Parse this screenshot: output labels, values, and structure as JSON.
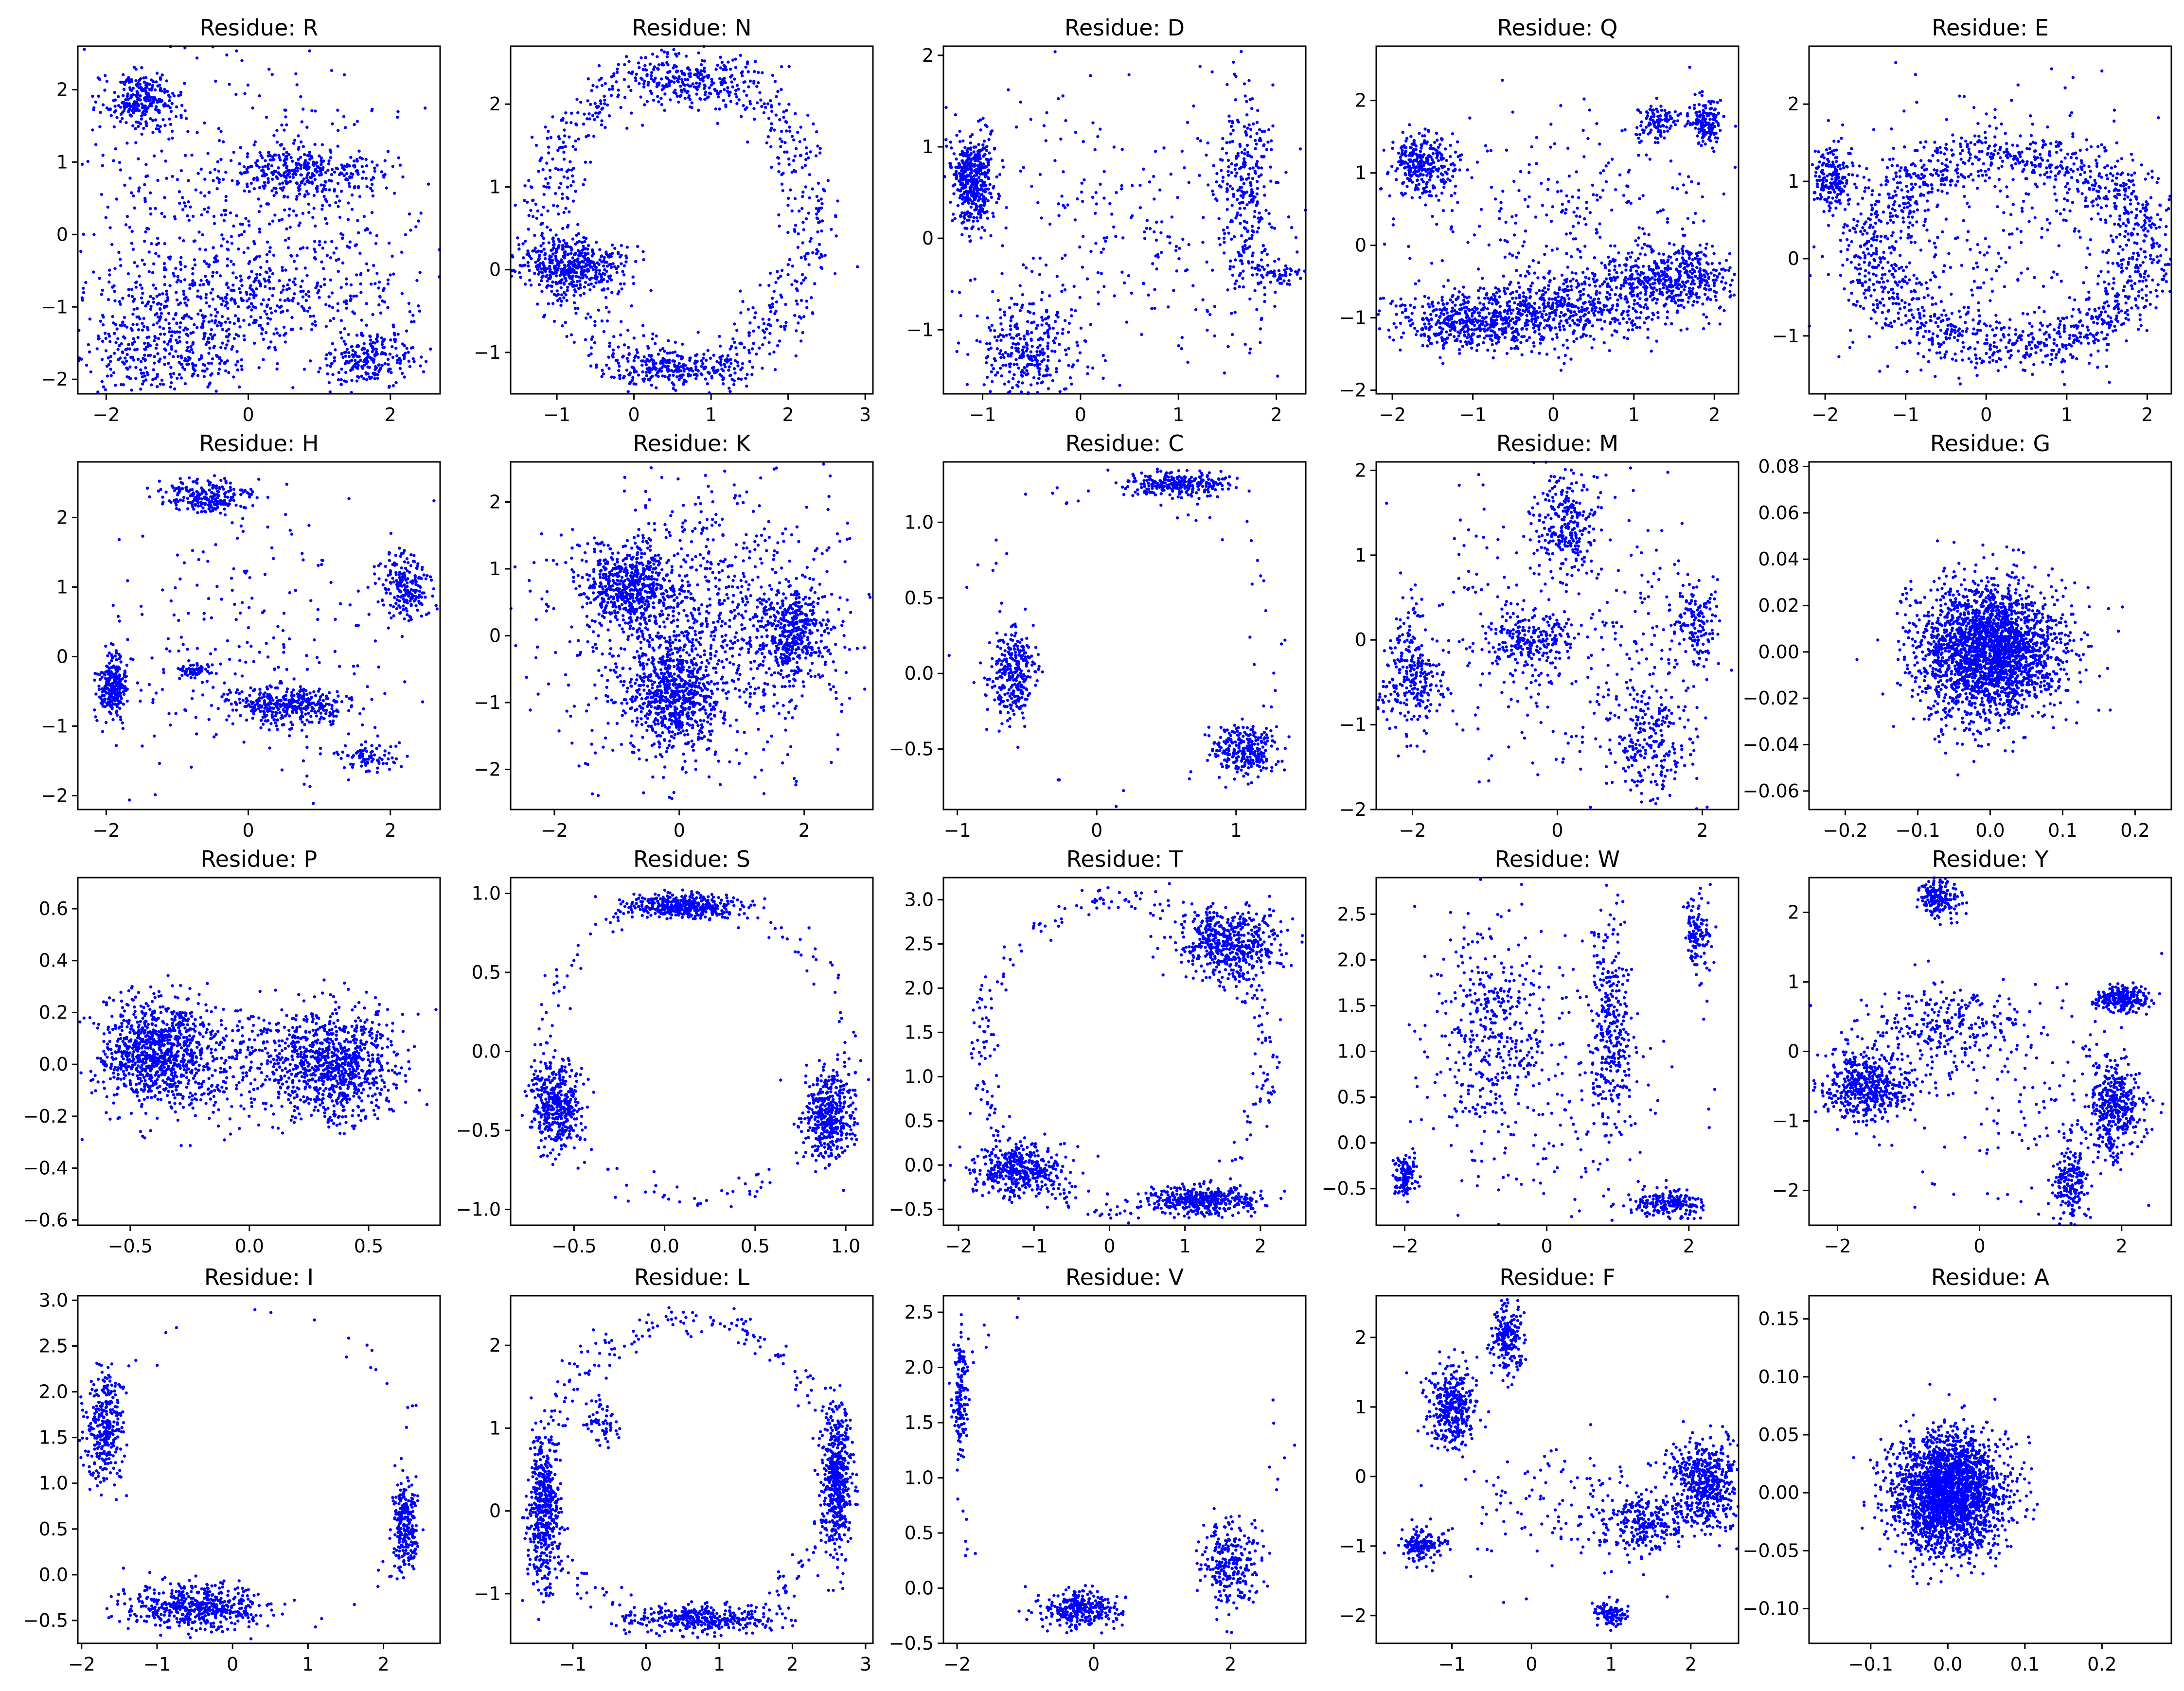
{
  "figure": {
    "point_color": "#0000ff",
    "background": "#ffffff"
  },
  "chart_data": [
    {
      "type": "scatter",
      "title": "Residue: R",
      "xlim": [
        -2.4,
        2.7
      ],
      "ylim": [
        -2.2,
        2.6
      ],
      "xticks": [
        -2,
        0,
        2
      ],
      "yticks": [
        -2,
        -1,
        0,
        1,
        2
      ],
      "clusters": [
        {
          "cx": -1.5,
          "cy": 1.85,
          "sx": 0.25,
          "sy": 0.18,
          "n": 260
        },
        {
          "cx": 0.8,
          "cy": 0.85,
          "sx": 0.55,
          "sy": 0.18,
          "n": 300
        },
        {
          "cx": 1.7,
          "cy": -1.7,
          "sx": 0.3,
          "sy": 0.2,
          "n": 220
        },
        {
          "cx": -1.2,
          "cy": -1.6,
          "sx": 0.6,
          "sy": 0.3,
          "n": 320
        },
        {
          "cx": 0.0,
          "cy": 0.0,
          "sx": 1.3,
          "sy": 1.1,
          "n": 700
        },
        {
          "cx": 0.0,
          "cy": -0.9,
          "sx": 1.1,
          "sy": 0.25,
          "n": 300
        }
      ]
    },
    {
      "type": "scatter",
      "title": "Residue: N",
      "xlim": [
        -1.6,
        3.1
      ],
      "ylim": [
        -1.5,
        2.7
      ],
      "xticks": [
        -1,
        0,
        1,
        2,
        3
      ],
      "yticks": [
        -1,
        0,
        1,
        2
      ],
      "clusters": [
        {
          "cx": -0.8,
          "cy": 0.05,
          "sx": 0.35,
          "sy": 0.15,
          "n": 420
        },
        {
          "cx": 0.7,
          "cy": 2.3,
          "sx": 0.4,
          "sy": 0.15,
          "n": 180
        },
        {
          "cx": 0.6,
          "cy": -1.2,
          "sx": 0.5,
          "sy": 0.1,
          "n": 200
        }
      ],
      "rings": [
        {
          "cx": 0.6,
          "cy": 0.6,
          "rx": 1.7,
          "ry": 1.8,
          "w": 0.12,
          "n": 800
        }
      ]
    },
    {
      "type": "scatter",
      "title": "Residue: D",
      "xlim": [
        -1.4,
        2.3
      ],
      "ylim": [
        -1.7,
        2.1
      ],
      "xticks": [
        -1,
        0,
        1,
        2
      ],
      "yticks": [
        -1,
        0,
        1,
        2
      ],
      "clusters": [
        {
          "cx": -1.1,
          "cy": 0.65,
          "sx": 0.1,
          "sy": 0.25,
          "n": 450
        },
        {
          "cx": -0.5,
          "cy": -1.2,
          "sx": 0.3,
          "sy": 0.3,
          "n": 300
        },
        {
          "cx": 1.7,
          "cy": 0.4,
          "sx": 0.15,
          "sy": 0.6,
          "n": 300
        },
        {
          "cx": 2.0,
          "cy": -0.4,
          "sx": 0.15,
          "sy": 0.07,
          "n": 60
        },
        {
          "cx": 0.4,
          "cy": 0.1,
          "sx": 0.9,
          "sy": 0.9,
          "n": 250
        }
      ]
    },
    {
      "type": "scatter",
      "title": "Residue: Q",
      "xlim": [
        -2.2,
        2.3
      ],
      "ylim": [
        -2.05,
        2.75
      ],
      "xticks": [
        -2,
        -1,
        0,
        1,
        2
      ],
      "yticks": [
        -2,
        -1,
        0,
        1,
        2
      ],
      "clusters": [
        {
          "cx": -1.6,
          "cy": 1.1,
          "sx": 0.2,
          "sy": 0.2,
          "n": 300
        },
        {
          "cx": 1.3,
          "cy": 1.7,
          "sx": 0.15,
          "sy": 0.12,
          "n": 100
        },
        {
          "cx": 1.9,
          "cy": 1.7,
          "sx": 0.1,
          "sy": 0.15,
          "n": 150
        },
        {
          "cx": -1.0,
          "cy": -1.05,
          "sx": 0.5,
          "sy": 0.2,
          "n": 500
        },
        {
          "cx": 0.3,
          "cy": -0.85,
          "sx": 0.6,
          "sy": 0.25,
          "n": 500
        },
        {
          "cx": 1.5,
          "cy": -0.45,
          "sx": 0.4,
          "sy": 0.2,
          "n": 400
        },
        {
          "cx": 0.3,
          "cy": 0.3,
          "sx": 1.0,
          "sy": 0.8,
          "n": 300
        }
      ]
    },
    {
      "type": "scatter",
      "title": "Residue: E",
      "xlim": [
        -2.2,
        2.3
      ],
      "ylim": [
        -1.75,
        2.75
      ],
      "xticks": [
        -2,
        -1,
        0,
        1,
        2
      ],
      "yticks": [
        -1,
        0,
        1,
        2
      ],
      "clusters": [
        {
          "cx": -1.9,
          "cy": 1.05,
          "sx": 0.12,
          "sy": 0.2,
          "n": 180
        },
        {
          "cx": 0.0,
          "cy": 0.4,
          "sx": 1.0,
          "sy": 1.0,
          "n": 300
        }
      ],
      "rings": [
        {
          "cx": 0.3,
          "cy": 0.1,
          "rx": 1.7,
          "ry": 1.25,
          "w": 0.14,
          "n": 1400
        }
      ]
    },
    {
      "type": "scatter",
      "title": "Residue: H",
      "xlim": [
        -2.4,
        2.7
      ],
      "ylim": [
        -2.2,
        2.8
      ],
      "xticks": [
        -2,
        0,
        2
      ],
      "yticks": [
        -2,
        -1,
        0,
        1,
        2
      ],
      "clusters": [
        {
          "cx": -0.6,
          "cy": 2.3,
          "sx": 0.3,
          "sy": 0.12,
          "n": 220
        },
        {
          "cx": 2.2,
          "cy": 1.0,
          "sx": 0.2,
          "sy": 0.25,
          "n": 200
        },
        {
          "cx": -1.9,
          "cy": -0.45,
          "sx": 0.1,
          "sy": 0.25,
          "n": 250
        },
        {
          "cx": 0.6,
          "cy": -0.7,
          "sx": 0.4,
          "sy": 0.13,
          "n": 350
        },
        {
          "cx": 1.7,
          "cy": -1.45,
          "sx": 0.2,
          "sy": 0.1,
          "n": 80
        },
        {
          "cx": -0.8,
          "cy": -0.2,
          "sx": 0.12,
          "sy": 0.05,
          "n": 60
        },
        {
          "cx": 0.0,
          "cy": 0.0,
          "sx": 1.3,
          "sy": 1.0,
          "n": 250
        }
      ]
    },
    {
      "type": "scatter",
      "title": "Residue: K",
      "xlim": [
        -2.7,
        3.1
      ],
      "ylim": [
        -2.6,
        2.6
      ],
      "xticks": [
        -2,
        0,
        2
      ],
      "yticks": [
        -2,
        -1,
        0,
        1,
        2
      ],
      "clusters": [
        {
          "cx": -0.8,
          "cy": 0.75,
          "sx": 0.35,
          "sy": 0.3,
          "n": 500
        },
        {
          "cx": -0.1,
          "cy": -0.85,
          "sx": 0.35,
          "sy": 0.4,
          "n": 600
        },
        {
          "cx": 1.8,
          "cy": 0.0,
          "sx": 0.3,
          "sy": 0.35,
          "n": 400
        },
        {
          "cx": 0.3,
          "cy": 0.1,
          "sx": 1.2,
          "sy": 1.0,
          "n": 1000
        }
      ]
    },
    {
      "type": "scatter",
      "title": "Residue: C",
      "xlim": [
        -1.1,
        1.5
      ],
      "ylim": [
        -0.9,
        1.4
      ],
      "xticks": [
        -1,
        0,
        1
      ],
      "yticks": [
        -0.5,
        0.0,
        0.5,
        1.0
      ],
      "clusters": [
        {
          "cx": 0.6,
          "cy": 1.25,
          "sx": 0.18,
          "sy": 0.04,
          "n": 250
        },
        {
          "cx": -0.6,
          "cy": 0.0,
          "sx": 0.08,
          "sy": 0.15,
          "n": 280
        },
        {
          "cx": 1.05,
          "cy": -0.5,
          "sx": 0.12,
          "sy": 0.08,
          "n": 260
        }
      ],
      "rings": [
        {
          "cx": 0.2,
          "cy": 0.2,
          "rx": 1.1,
          "ry": 1.05,
          "w": 0.08,
          "n": 60
        }
      ]
    },
    {
      "type": "scatter",
      "title": "Residue: M",
      "xlim": [
        -2.5,
        2.5
      ],
      "ylim": [
        -2.0,
        2.1
      ],
      "xticks": [
        -2,
        0,
        2
      ],
      "yticks": [
        -2,
        -1,
        0,
        1,
        2
      ],
      "clusters": [
        {
          "cx": 0.1,
          "cy": 1.4,
          "sx": 0.2,
          "sy": 0.3,
          "n": 250
        },
        {
          "cx": -2.0,
          "cy": -0.4,
          "sx": 0.2,
          "sy": 0.35,
          "n": 250
        },
        {
          "cx": -0.4,
          "cy": 0.0,
          "sx": 0.3,
          "sy": 0.15,
          "n": 200
        },
        {
          "cx": 1.3,
          "cy": -1.2,
          "sx": 0.3,
          "sy": 0.4,
          "n": 250
        },
        {
          "cx": 1.9,
          "cy": 0.2,
          "sx": 0.2,
          "sy": 0.3,
          "n": 150
        },
        {
          "cx": 0.0,
          "cy": 0.0,
          "sx": 1.2,
          "sy": 0.9,
          "n": 350
        }
      ]
    },
    {
      "type": "scatter",
      "title": "Residue: G",
      "xlim": [
        -0.25,
        0.25
      ],
      "ylim": [
        -0.068,
        0.082
      ],
      "xticks": [
        -0.2,
        -0.1,
        0.0,
        0.1,
        0.2
      ],
      "yticks": [
        -0.06,
        -0.04,
        -0.02,
        0.0,
        0.02,
        0.04,
        0.06,
        0.08
      ],
      "clusters": [
        {
          "cx": 0.0,
          "cy": 0.0,
          "sx": 0.05,
          "sy": 0.014,
          "n": 2400
        }
      ]
    },
    {
      "type": "scatter",
      "title": "Residue: P",
      "xlim": [
        -0.72,
        0.8
      ],
      "ylim": [
        -0.62,
        0.72
      ],
      "xticks": [
        -0.5,
        0.0,
        0.5
      ],
      "yticks": [
        -0.6,
        -0.4,
        -0.2,
        0.0,
        0.2,
        0.4,
        0.6
      ],
      "clusters": [
        {
          "cx": -0.4,
          "cy": 0.05,
          "sx": 0.12,
          "sy": 0.1,
          "n": 900
        },
        {
          "cx": 0.35,
          "cy": 0.0,
          "sx": 0.13,
          "sy": 0.1,
          "n": 800
        },
        {
          "cx": 0.0,
          "cy": 0.0,
          "sx": 0.25,
          "sy": 0.12,
          "n": 350
        }
      ]
    },
    {
      "type": "scatter",
      "title": "Residue: S",
      "xlim": [
        -0.85,
        1.15
      ],
      "ylim": [
        -1.1,
        1.1
      ],
      "xticks": [
        -0.5,
        0.0,
        0.5,
        1.0
      ],
      "yticks": [
        -1.0,
        -0.5,
        0.0,
        0.5,
        1.0
      ],
      "clusters": [
        {
          "cx": 0.1,
          "cy": 0.92,
          "sx": 0.15,
          "sy": 0.04,
          "n": 400
        },
        {
          "cx": -0.6,
          "cy": -0.35,
          "sx": 0.07,
          "sy": 0.14,
          "n": 400
        },
        {
          "cx": 0.9,
          "cy": -0.4,
          "sx": 0.07,
          "sy": 0.14,
          "n": 400
        }
      ],
      "rings": [
        {
          "cx": 0.15,
          "cy": 0.0,
          "rx": 0.85,
          "ry": 0.93,
          "w": 0.05,
          "n": 150
        }
      ]
    },
    {
      "type": "scatter",
      "title": "Residue: T",
      "xlim": [
        -2.2,
        2.6
      ],
      "ylim": [
        -0.68,
        3.25
      ],
      "xticks": [
        -2,
        -1,
        0,
        1,
        2
      ],
      "yticks": [
        -0.5,
        0.0,
        0.5,
        1.0,
        1.5,
        2.0,
        2.5,
        3.0
      ],
      "clusters": [
        {
          "cx": -1.2,
          "cy": -0.05,
          "sx": 0.3,
          "sy": 0.15,
          "n": 400
        },
        {
          "cx": 1.2,
          "cy": -0.4,
          "sx": 0.35,
          "sy": 0.08,
          "n": 400
        },
        {
          "cx": 1.6,
          "cy": 2.5,
          "sx": 0.35,
          "sy": 0.2,
          "n": 500
        }
      ],
      "rings": [
        {
          "cx": 0.2,
          "cy": 1.25,
          "rx": 1.9,
          "ry": 1.78,
          "w": 0.05,
          "n": 300
        }
      ]
    },
    {
      "type": "scatter",
      "title": "Residue: W",
      "xlim": [
        -2.4,
        2.7
      ],
      "ylim": [
        -0.9,
        2.9
      ],
      "xticks": [
        -2,
        0,
        2
      ],
      "yticks": [
        -0.5,
        0.0,
        0.5,
        1.0,
        1.5,
        2.0,
        2.5
      ],
      "clusters": [
        {
          "cx": -2.0,
          "cy": -0.35,
          "sx": 0.08,
          "sy": 0.12,
          "n": 120
        },
        {
          "cx": 1.7,
          "cy": -0.65,
          "sx": 0.25,
          "sy": 0.08,
          "n": 200
        },
        {
          "cx": 2.1,
          "cy": 2.3,
          "sx": 0.1,
          "sy": 0.25,
          "n": 120
        },
        {
          "cx": -0.8,
          "cy": 1.2,
          "sx": 0.4,
          "sy": 0.6,
          "n": 400
        },
        {
          "cx": 0.9,
          "cy": 1.3,
          "sx": 0.15,
          "sy": 0.6,
          "n": 300
        },
        {
          "cx": 0.4,
          "cy": 0.5,
          "sx": 0.8,
          "sy": 0.8,
          "n": 150
        }
      ]
    },
    {
      "type": "scatter",
      "title": "Residue: Y",
      "xlim": [
        -2.4,
        2.7
      ],
      "ylim": [
        -2.5,
        2.5
      ],
      "xticks": [
        -2,
        0,
        2
      ],
      "yticks": [
        -2,
        -1,
        0,
        1,
        2
      ],
      "clusters": [
        {
          "cx": -0.6,
          "cy": 2.2,
          "sx": 0.15,
          "sy": 0.15,
          "n": 180
        },
        {
          "cx": -1.6,
          "cy": -0.5,
          "sx": 0.3,
          "sy": 0.25,
          "n": 500
        },
        {
          "cx": 2.0,
          "cy": 0.75,
          "sx": 0.18,
          "sy": 0.1,
          "n": 250
        },
        {
          "cx": 1.9,
          "cy": -0.8,
          "sx": 0.2,
          "sy": 0.35,
          "n": 400
        },
        {
          "cx": 1.3,
          "cy": -1.9,
          "sx": 0.12,
          "sy": 0.3,
          "n": 200
        },
        {
          "cx": -0.5,
          "cy": 0.3,
          "sx": 0.6,
          "sy": 0.3,
          "n": 250
        },
        {
          "cx": 0.5,
          "cy": -0.5,
          "sx": 1.0,
          "sy": 0.9,
          "n": 150
        }
      ]
    },
    {
      "type": "scatter",
      "title": "Residue: I",
      "xlim": [
        -2.05,
        2.75
      ],
      "ylim": [
        -0.75,
        3.05
      ],
      "xticks": [
        -2,
        -1,
        0,
        1,
        2
      ],
      "yticks": [
        -0.5,
        0.0,
        0.5,
        1.0,
        1.5,
        2.0,
        2.5,
        3.0
      ],
      "clusters": [
        {
          "cx": -1.7,
          "cy": 1.6,
          "sx": 0.12,
          "sy": 0.3,
          "n": 300
        },
        {
          "cx": 2.3,
          "cy": 0.5,
          "sx": 0.08,
          "sy": 0.25,
          "n": 250
        },
        {
          "cx": -0.5,
          "cy": -0.35,
          "sx": 0.45,
          "sy": 0.12,
          "n": 500
        }
      ],
      "rings": [
        {
          "cx": 0.3,
          "cy": 1.15,
          "rx": 2.1,
          "ry": 1.75,
          "w": 0.05,
          "n": 40
        }
      ]
    },
    {
      "type": "scatter",
      "title": "Residue: L",
      "xlim": [
        -1.85,
        3.1
      ],
      "ylim": [
        -1.6,
        2.6
      ],
      "xticks": [
        -1,
        0,
        1,
        2,
        3
      ],
      "yticks": [
        -1,
        0,
        1,
        2
      ],
      "clusters": [
        {
          "cx": -1.4,
          "cy": 0.0,
          "sx": 0.1,
          "sy": 0.45,
          "n": 450
        },
        {
          "cx": 2.6,
          "cy": 0.4,
          "sx": 0.1,
          "sy": 0.45,
          "n": 500
        },
        {
          "cx": 0.8,
          "cy": -1.3,
          "sx": 0.5,
          "sy": 0.08,
          "n": 300
        },
        {
          "cx": -0.6,
          "cy": 1.1,
          "sx": 0.12,
          "sy": 0.15,
          "n": 60
        }
      ],
      "rings": [
        {
          "cx": 0.6,
          "cy": 0.45,
          "rx": 2.0,
          "ry": 1.85,
          "w": 0.06,
          "n": 350
        }
      ]
    },
    {
      "type": "scatter",
      "title": "Residue: V",
      "xlim": [
        -2.2,
        3.1
      ],
      "ylim": [
        -0.5,
        2.65
      ],
      "xticks": [
        -2,
        0,
        2
      ],
      "yticks": [
        -0.5,
        0.0,
        0.5,
        1.0,
        1.5,
        2.0,
        2.5
      ],
      "clusters": [
        {
          "cx": -1.95,
          "cy": 1.75,
          "sx": 0.05,
          "sy": 0.3,
          "n": 150
        },
        {
          "cx": -0.2,
          "cy": -0.2,
          "sx": 0.3,
          "sy": 0.08,
          "n": 300
        },
        {
          "cx": 2.0,
          "cy": 0.2,
          "sx": 0.2,
          "sy": 0.2,
          "n": 250
        }
      ],
      "rings": [
        {
          "cx": 0.3,
          "cy": 1.2,
          "rx": 2.5,
          "ry": 1.5,
          "w": 0.05,
          "n": 40
        }
      ]
    },
    {
      "type": "scatter",
      "title": "Residue: F",
      "xlim": [
        -1.95,
        2.6
      ],
      "ylim": [
        -2.4,
        2.6
      ],
      "xticks": [
        -1,
        0,
        1,
        2
      ],
      "yticks": [
        -2,
        -1,
        0,
        1,
        2
      ],
      "clusters": [
        {
          "cx": -1.0,
          "cy": 1.0,
          "sx": 0.15,
          "sy": 0.3,
          "n": 350
        },
        {
          "cx": -0.3,
          "cy": 2.0,
          "sx": 0.1,
          "sy": 0.25,
          "n": 200
        },
        {
          "cx": -1.4,
          "cy": -1.0,
          "sx": 0.15,
          "sy": 0.12,
          "n": 150
        },
        {
          "cx": 2.2,
          "cy": -0.1,
          "sx": 0.2,
          "sy": 0.3,
          "n": 500
        },
        {
          "cx": 1.5,
          "cy": -0.7,
          "sx": 0.3,
          "sy": 0.2,
          "n": 250
        },
        {
          "cx": 1.0,
          "cy": -2.0,
          "sx": 0.12,
          "sy": 0.08,
          "n": 100
        },
        {
          "cx": 0.5,
          "cy": -0.5,
          "sx": 0.8,
          "sy": 0.5,
          "n": 150
        }
      ]
    },
    {
      "type": "scatter",
      "title": "Residue: A",
      "xlim": [
        -0.18,
        0.29
      ],
      "ylim": [
        -0.13,
        0.17
      ],
      "xticks": [
        -0.1,
        0.0,
        0.1,
        0.2
      ],
      "yticks": [
        -0.1,
        -0.05,
        0.0,
        0.05,
        0.1,
        0.15
      ],
      "clusters": [
        {
          "cx": 0.0,
          "cy": 0.0,
          "sx": 0.035,
          "sy": 0.025,
          "n": 2400
        }
      ]
    }
  ]
}
